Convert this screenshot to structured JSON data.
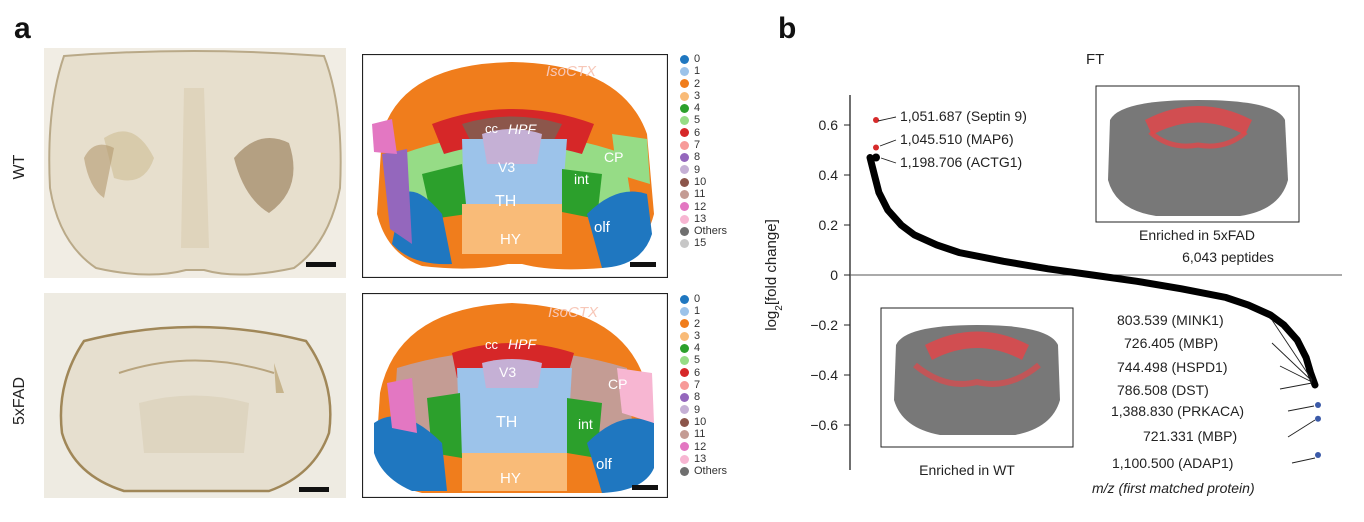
{
  "panel_a": {
    "letter": "a",
    "row_labels": [
      "WT",
      "5xFAD"
    ],
    "legend_wt": [
      {
        "label": "0",
        "color": "#1f77c0"
      },
      {
        "label": "1",
        "color": "#9cc3ea"
      },
      {
        "label": "2",
        "color": "#f07d1c"
      },
      {
        "label": "3",
        "color": "#f9bb78"
      },
      {
        "label": "4",
        "color": "#2ca02c"
      },
      {
        "label": "5",
        "color": "#96dc86"
      },
      {
        "label": "6",
        "color": "#d62728"
      },
      {
        "label": "7",
        "color": "#f79a99"
      },
      {
        "label": "8",
        "color": "#9467bd"
      },
      {
        "label": "9",
        "color": "#c5b0d5"
      },
      {
        "label": "10",
        "color": "#8c564b"
      },
      {
        "label": "11",
        "color": "#c49c94"
      },
      {
        "label": "12",
        "color": "#e377c2"
      },
      {
        "label": "13",
        "color": "#f7b6d2"
      },
      {
        "label": "Others",
        "color": "#6f6f6f"
      },
      {
        "label": "15",
        "color": "#c7c7c7"
      }
    ],
    "legend_5xfad": [
      {
        "label": "0",
        "color": "#1f77c0"
      },
      {
        "label": "1",
        "color": "#9cc3ea"
      },
      {
        "label": "2",
        "color": "#f07d1c"
      },
      {
        "label": "3",
        "color": "#f9bb78"
      },
      {
        "label": "4",
        "color": "#2ca02c"
      },
      {
        "label": "5",
        "color": "#96dc86"
      },
      {
        "label": "6",
        "color": "#d62728"
      },
      {
        "label": "7",
        "color": "#f79a99"
      },
      {
        "label": "8",
        "color": "#9467bd"
      },
      {
        "label": "9",
        "color": "#c5b0d5"
      },
      {
        "label": "10",
        "color": "#8c564b"
      },
      {
        "label": "11",
        "color": "#c49c94"
      },
      {
        "label": "12",
        "color": "#e377c2"
      },
      {
        "label": "13",
        "color": "#f7b6d2"
      },
      {
        "label": "Others",
        "color": "#6f6f6f"
      }
    ],
    "region_labels": {
      "isoctx": "IsoCTX",
      "cc": "cc",
      "hpf": "HPF",
      "v3": "V3",
      "th": "TH",
      "cp": "CP",
      "int": "int",
      "hy": "HY",
      "olf": "olf"
    }
  },
  "panel_b": {
    "letter": "b",
    "title": "FT",
    "inset_top_caption": "Enriched in 5xFAD",
    "inset_top_count": "6,043 peptides",
    "inset_bottom_caption": "Enriched in WT",
    "xaxis_note": "m/z (first matched protein)",
    "top_annotations": [
      "1,051.687 (Septin 9)",
      "1,045.510 (MAP6)",
      "1,198.706 (ACTG1)"
    ],
    "bottom_annotations": [
      "803.539 (MINK1)",
      "726.405 (MBP)",
      "744.498 (HSPD1)",
      "786.508 (DST)",
      "1,388.830 (PRKACA)",
      "721.331 (MBP)",
      "1,100.500 (ADAP1)"
    ],
    "colors": {
      "highlight_red": "#d62b2b",
      "highlight_blue": "#3b5aa8",
      "curve": "#000000",
      "brain_gray": "#787878"
    }
  },
  "chart_data": {
    "type": "line",
    "title": "FT",
    "xlabel": "m/z (first matched protein)",
    "ylabel": "log2[fold change]",
    "ylabel_main": "log",
    "ylabel_sub": "2",
    "ylabel_rest": "[fold change]",
    "ylim": [
      -0.77,
      0.72
    ],
    "yticks": [
      0.6,
      0.4,
      0.2,
      0,
      -0.2,
      -0.4,
      -0.6
    ],
    "ytick_labels": [
      "0.6",
      "0.4",
      "0.2",
      "0",
      "−0.2",
      "−0.4",
      "−0.6"
    ],
    "n_peptides": 6043,
    "series": [
      {
        "name": "ranked peptides",
        "x": [
          0,
          0.01,
          0.02,
          0.04,
          0.07,
          0.1,
          0.15,
          0.2,
          0.3,
          0.4,
          0.5,
          0.6,
          0.7,
          0.8,
          0.85,
          0.9,
          0.93,
          0.96,
          0.98,
          0.99,
          1.0
        ],
        "values": [
          0.47,
          0.4,
          0.33,
          0.26,
          0.2,
          0.16,
          0.12,
          0.09,
          0.055,
          0.025,
          0.0,
          -0.025,
          -0.055,
          -0.09,
          -0.12,
          -0.16,
          -0.2,
          -0.26,
          -0.33,
          -0.39,
          -0.44
        ]
      }
    ],
    "highlighted_points": [
      {
        "label": "1,051.687 (Septin 9)",
        "rank": 0.0,
        "value": 0.62,
        "color": "#d62b2b"
      },
      {
        "label": "1,045.510 (MAP6)",
        "rank": 0.0,
        "value": 0.51,
        "color": "#d62b2b"
      },
      {
        "label": "1,198.706 (ACTG1)",
        "rank": 0.0,
        "value": 0.47,
        "color": "#000000"
      },
      {
        "label": "1,388.830 (PRKACA)",
        "rank": 1.0,
        "value": -0.52,
        "color": "#3b5aa8"
      },
      {
        "label": "721.331 (MBP)",
        "rank": 1.0,
        "value": -0.575,
        "color": "#3b5aa8"
      },
      {
        "label": "1,100.500 (ADAP1)",
        "rank": 1.0,
        "value": -0.72,
        "color": "#3b5aa8"
      }
    ]
  }
}
